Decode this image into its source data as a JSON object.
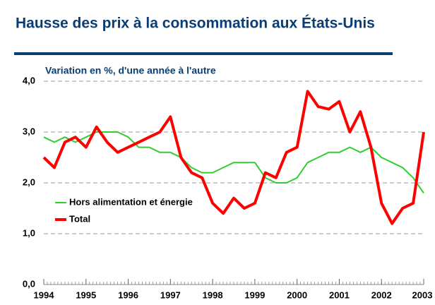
{
  "chart_data": {
    "type": "line",
    "title": "Hausse des prix à la consommation aux États-Unis",
    "subtitle": "Variation en %, d'une année à l'autre",
    "x": [
      1994.0,
      1994.25,
      1994.5,
      1994.75,
      1995.0,
      1995.25,
      1995.5,
      1995.75,
      1996.0,
      1996.25,
      1996.5,
      1996.75,
      1997.0,
      1997.25,
      1997.5,
      1997.75,
      1998.0,
      1998.25,
      1998.5,
      1998.75,
      1999.0,
      1999.25,
      1999.5,
      1999.75,
      2000.0,
      2000.25,
      2000.5,
      2000.75,
      2001.0,
      2001.25,
      2001.5,
      2001.75,
      2002.0,
      2002.25,
      2002.5,
      2002.75,
      2003.0
    ],
    "series": [
      {
        "name": "Hors alimentation et énergie",
        "color": "#33cc33",
        "values": [
          2.9,
          2.8,
          2.9,
          2.8,
          2.9,
          3.0,
          3.0,
          3.0,
          2.9,
          2.7,
          2.7,
          2.6,
          2.6,
          2.5,
          2.3,
          2.2,
          2.2,
          2.3,
          2.4,
          2.4,
          2.4,
          2.1,
          2.0,
          2.0,
          2.1,
          2.4,
          2.5,
          2.6,
          2.6,
          2.7,
          2.6,
          2.7,
          2.5,
          2.4,
          2.3,
          2.1,
          1.8
        ]
      },
      {
        "name": "Total",
        "color": "#ff0000",
        "values": [
          2.5,
          2.3,
          2.8,
          2.9,
          2.7,
          3.1,
          2.8,
          2.6,
          2.7,
          2.8,
          2.9,
          3.0,
          3.3,
          2.5,
          2.2,
          2.1,
          1.6,
          1.4,
          1.7,
          1.5,
          1.6,
          2.2,
          2.1,
          2.6,
          2.7,
          3.8,
          3.5,
          3.45,
          3.6,
          3.0,
          3.4,
          2.7,
          1.6,
          1.2,
          1.5,
          1.6,
          3.0
        ]
      }
    ],
    "xlim": [
      1994,
      2003
    ],
    "xticks": [
      1994,
      1995,
      1996,
      1997,
      1998,
      1999,
      2000,
      2001,
      2002,
      2003
    ],
    "ylim": [
      0,
      4
    ],
    "yticks": [
      {
        "value": 0,
        "label": "0,0"
      },
      {
        "value": 1,
        "label": "1,0"
      },
      {
        "value": 2,
        "label": "2,0"
      },
      {
        "value": 3,
        "label": "3,0"
      },
      {
        "value": 4,
        "label": "4,0"
      }
    ],
    "grid": true,
    "legend": "lower left"
  }
}
